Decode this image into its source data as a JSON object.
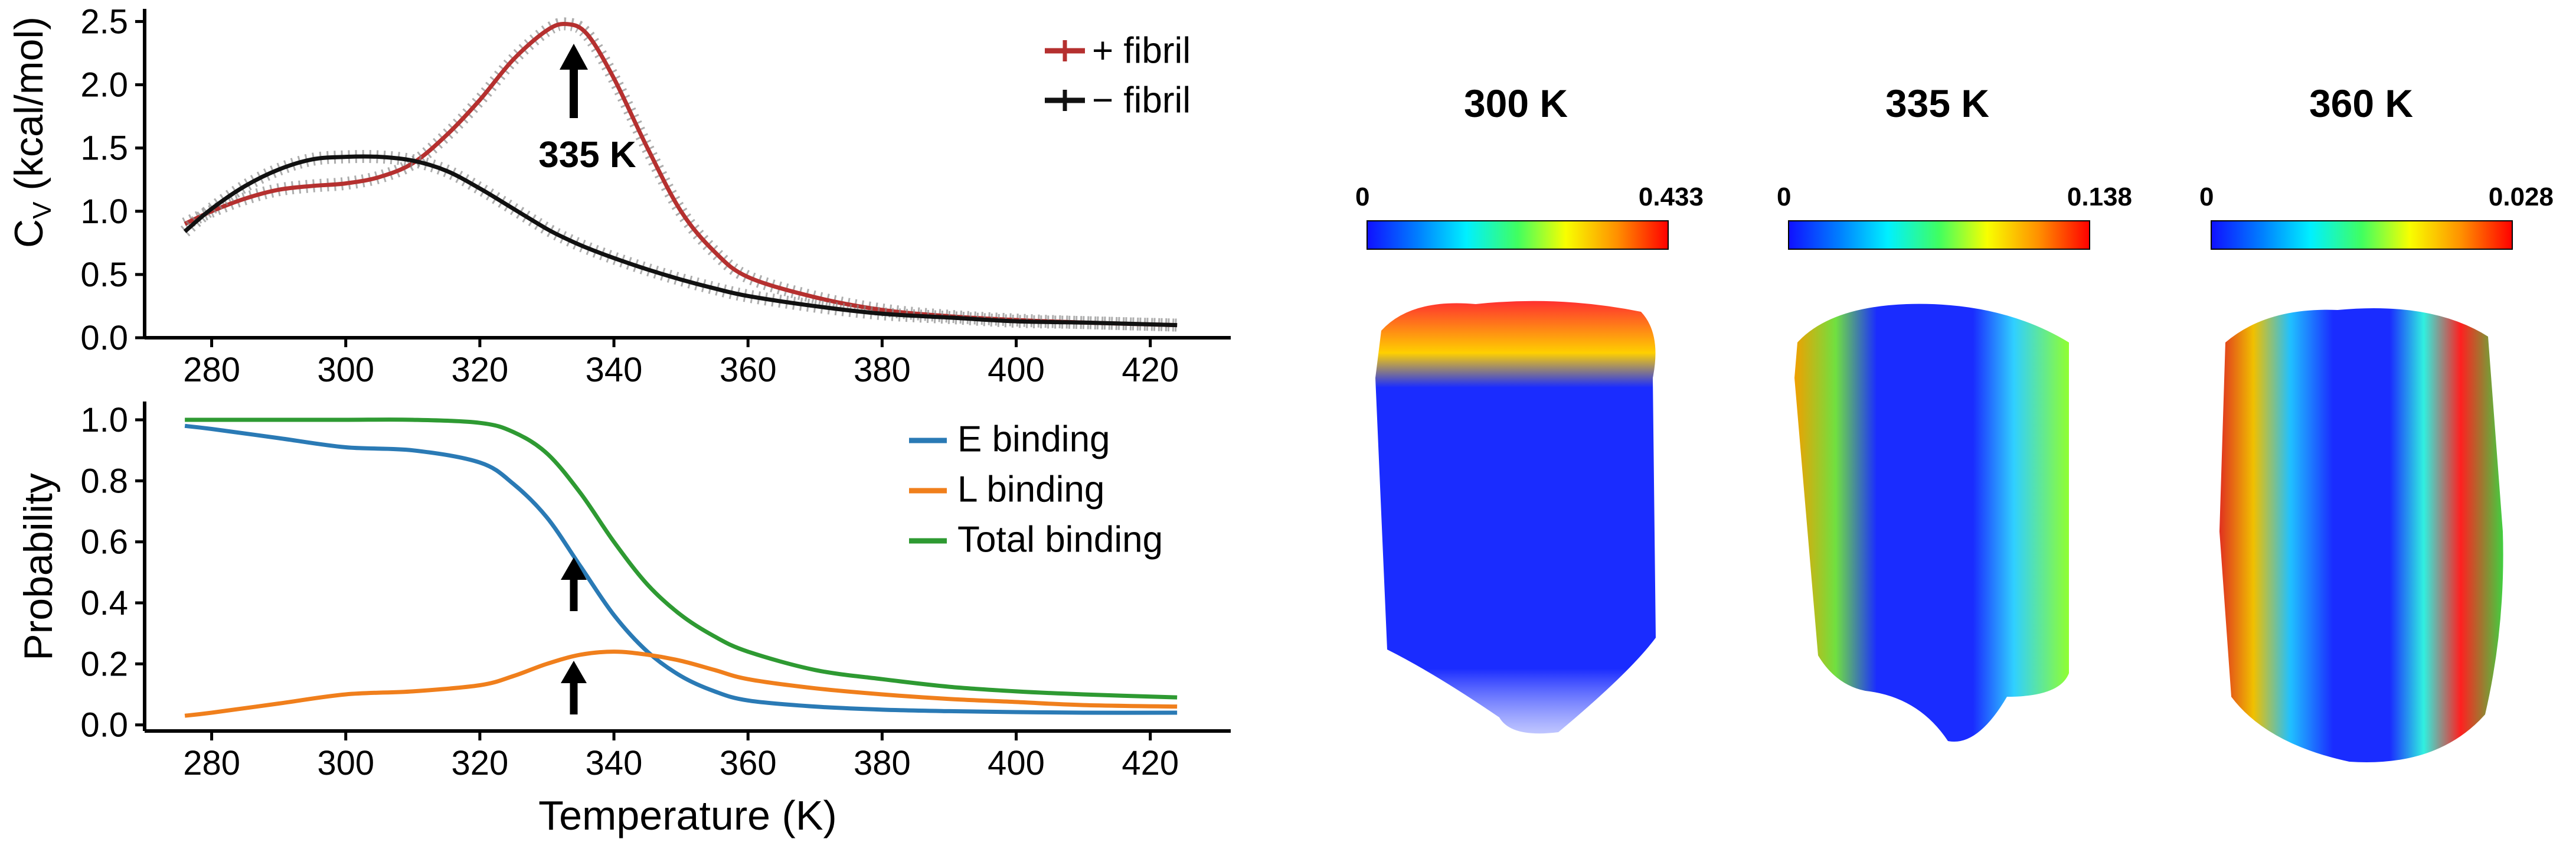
{
  "chart_data": [
    {
      "type": "line",
      "xlabel": "",
      "ylabel_main": "C",
      "ylabel_sub": "V",
      "ylabel_rest": " (kcal/mol)",
      "xlim": [
        270,
        432
      ],
      "ylim": [
        0,
        2.6
      ],
      "xticks": [
        "280",
        "300",
        "320",
        "340",
        "360",
        "380",
        "400",
        "420"
      ],
      "yticks": [
        "0.0",
        "0.5",
        "1.0",
        "1.5",
        "2.0",
        "2.5"
      ],
      "legend_position": "top-right",
      "annotation": "335 K",
      "x": [
        276,
        280,
        285,
        290,
        295,
        300,
        305,
        310,
        315,
        320,
        325,
        330,
        333,
        336,
        340,
        345,
        350,
        355,
        360,
        370,
        380,
        390,
        400,
        410,
        424
      ],
      "series": [
        {
          "name": "+ fibril",
          "color": "#b5302f",
          "values": [
            0.9,
            1.0,
            1.1,
            1.17,
            1.2,
            1.22,
            1.27,
            1.38,
            1.6,
            1.88,
            2.2,
            2.43,
            2.48,
            2.4,
            2.05,
            1.5,
            1.0,
            0.68,
            0.48,
            0.32,
            0.22,
            0.17,
            0.14,
            0.12,
            0.1
          ]
        },
        {
          "name": "− fibril",
          "color": "#111111",
          "values": [
            0.84,
            1.02,
            1.2,
            1.33,
            1.41,
            1.43,
            1.43,
            1.4,
            1.32,
            1.18,
            1.02,
            0.86,
            0.78,
            0.71,
            0.63,
            0.54,
            0.46,
            0.39,
            0.33,
            0.25,
            0.19,
            0.16,
            0.13,
            0.12,
            0.1
          ]
        }
      ]
    },
    {
      "type": "line",
      "xlabel": "Temperature (K)",
      "ylabel": "Probability",
      "xlim": [
        270,
        432
      ],
      "ylim": [
        -0.02,
        1.06
      ],
      "xticks": [
        "280",
        "300",
        "320",
        "340",
        "360",
        "380",
        "400",
        "420"
      ],
      "yticks": [
        "0.0",
        "0.2",
        "0.4",
        "0.6",
        "0.8",
        "1.0"
      ],
      "legend_position": "top-right",
      "x": [
        276,
        280,
        290,
        300,
        310,
        320,
        325,
        330,
        335,
        340,
        345,
        350,
        355,
        360,
        370,
        380,
        390,
        400,
        410,
        424
      ],
      "series": [
        {
          "name": "E binding",
          "color": "#2a7ab5",
          "values": [
            0.98,
            0.97,
            0.94,
            0.91,
            0.9,
            0.86,
            0.79,
            0.68,
            0.52,
            0.36,
            0.24,
            0.16,
            0.11,
            0.08,
            0.06,
            0.05,
            0.045,
            0.042,
            0.04,
            0.04
          ]
        },
        {
          "name": "L binding",
          "color": "#f07f1c",
          "values": [
            0.03,
            0.04,
            0.07,
            0.1,
            0.11,
            0.13,
            0.16,
            0.2,
            0.23,
            0.24,
            0.23,
            0.21,
            0.18,
            0.15,
            0.12,
            0.1,
            0.085,
            0.075,
            0.065,
            0.06
          ]
        },
        {
          "name": "Total binding",
          "color": "#2e9a32",
          "values": [
            1.0,
            1.0,
            1.0,
            1.0,
            1.0,
            0.99,
            0.96,
            0.89,
            0.76,
            0.6,
            0.46,
            0.36,
            0.29,
            0.24,
            0.18,
            0.15,
            0.125,
            0.11,
            0.1,
            0.09
          ]
        }
      ]
    }
  ],
  "panels": [
    {
      "title": "300 K",
      "scale_min": "0",
      "scale_max": "0.433"
    },
    {
      "title": "335 K",
      "scale_min": "0",
      "scale_max": "0.138"
    },
    {
      "title": "360 K",
      "scale_min": "0",
      "scale_max": "0.028"
    }
  ],
  "colors": {
    "colorbar": [
      "#1010ff",
      "#00a0ff",
      "#00ffff",
      "#40ff40",
      "#ffff00",
      "#ff8000",
      "#ff0000"
    ],
    "axis": "#000000"
  }
}
